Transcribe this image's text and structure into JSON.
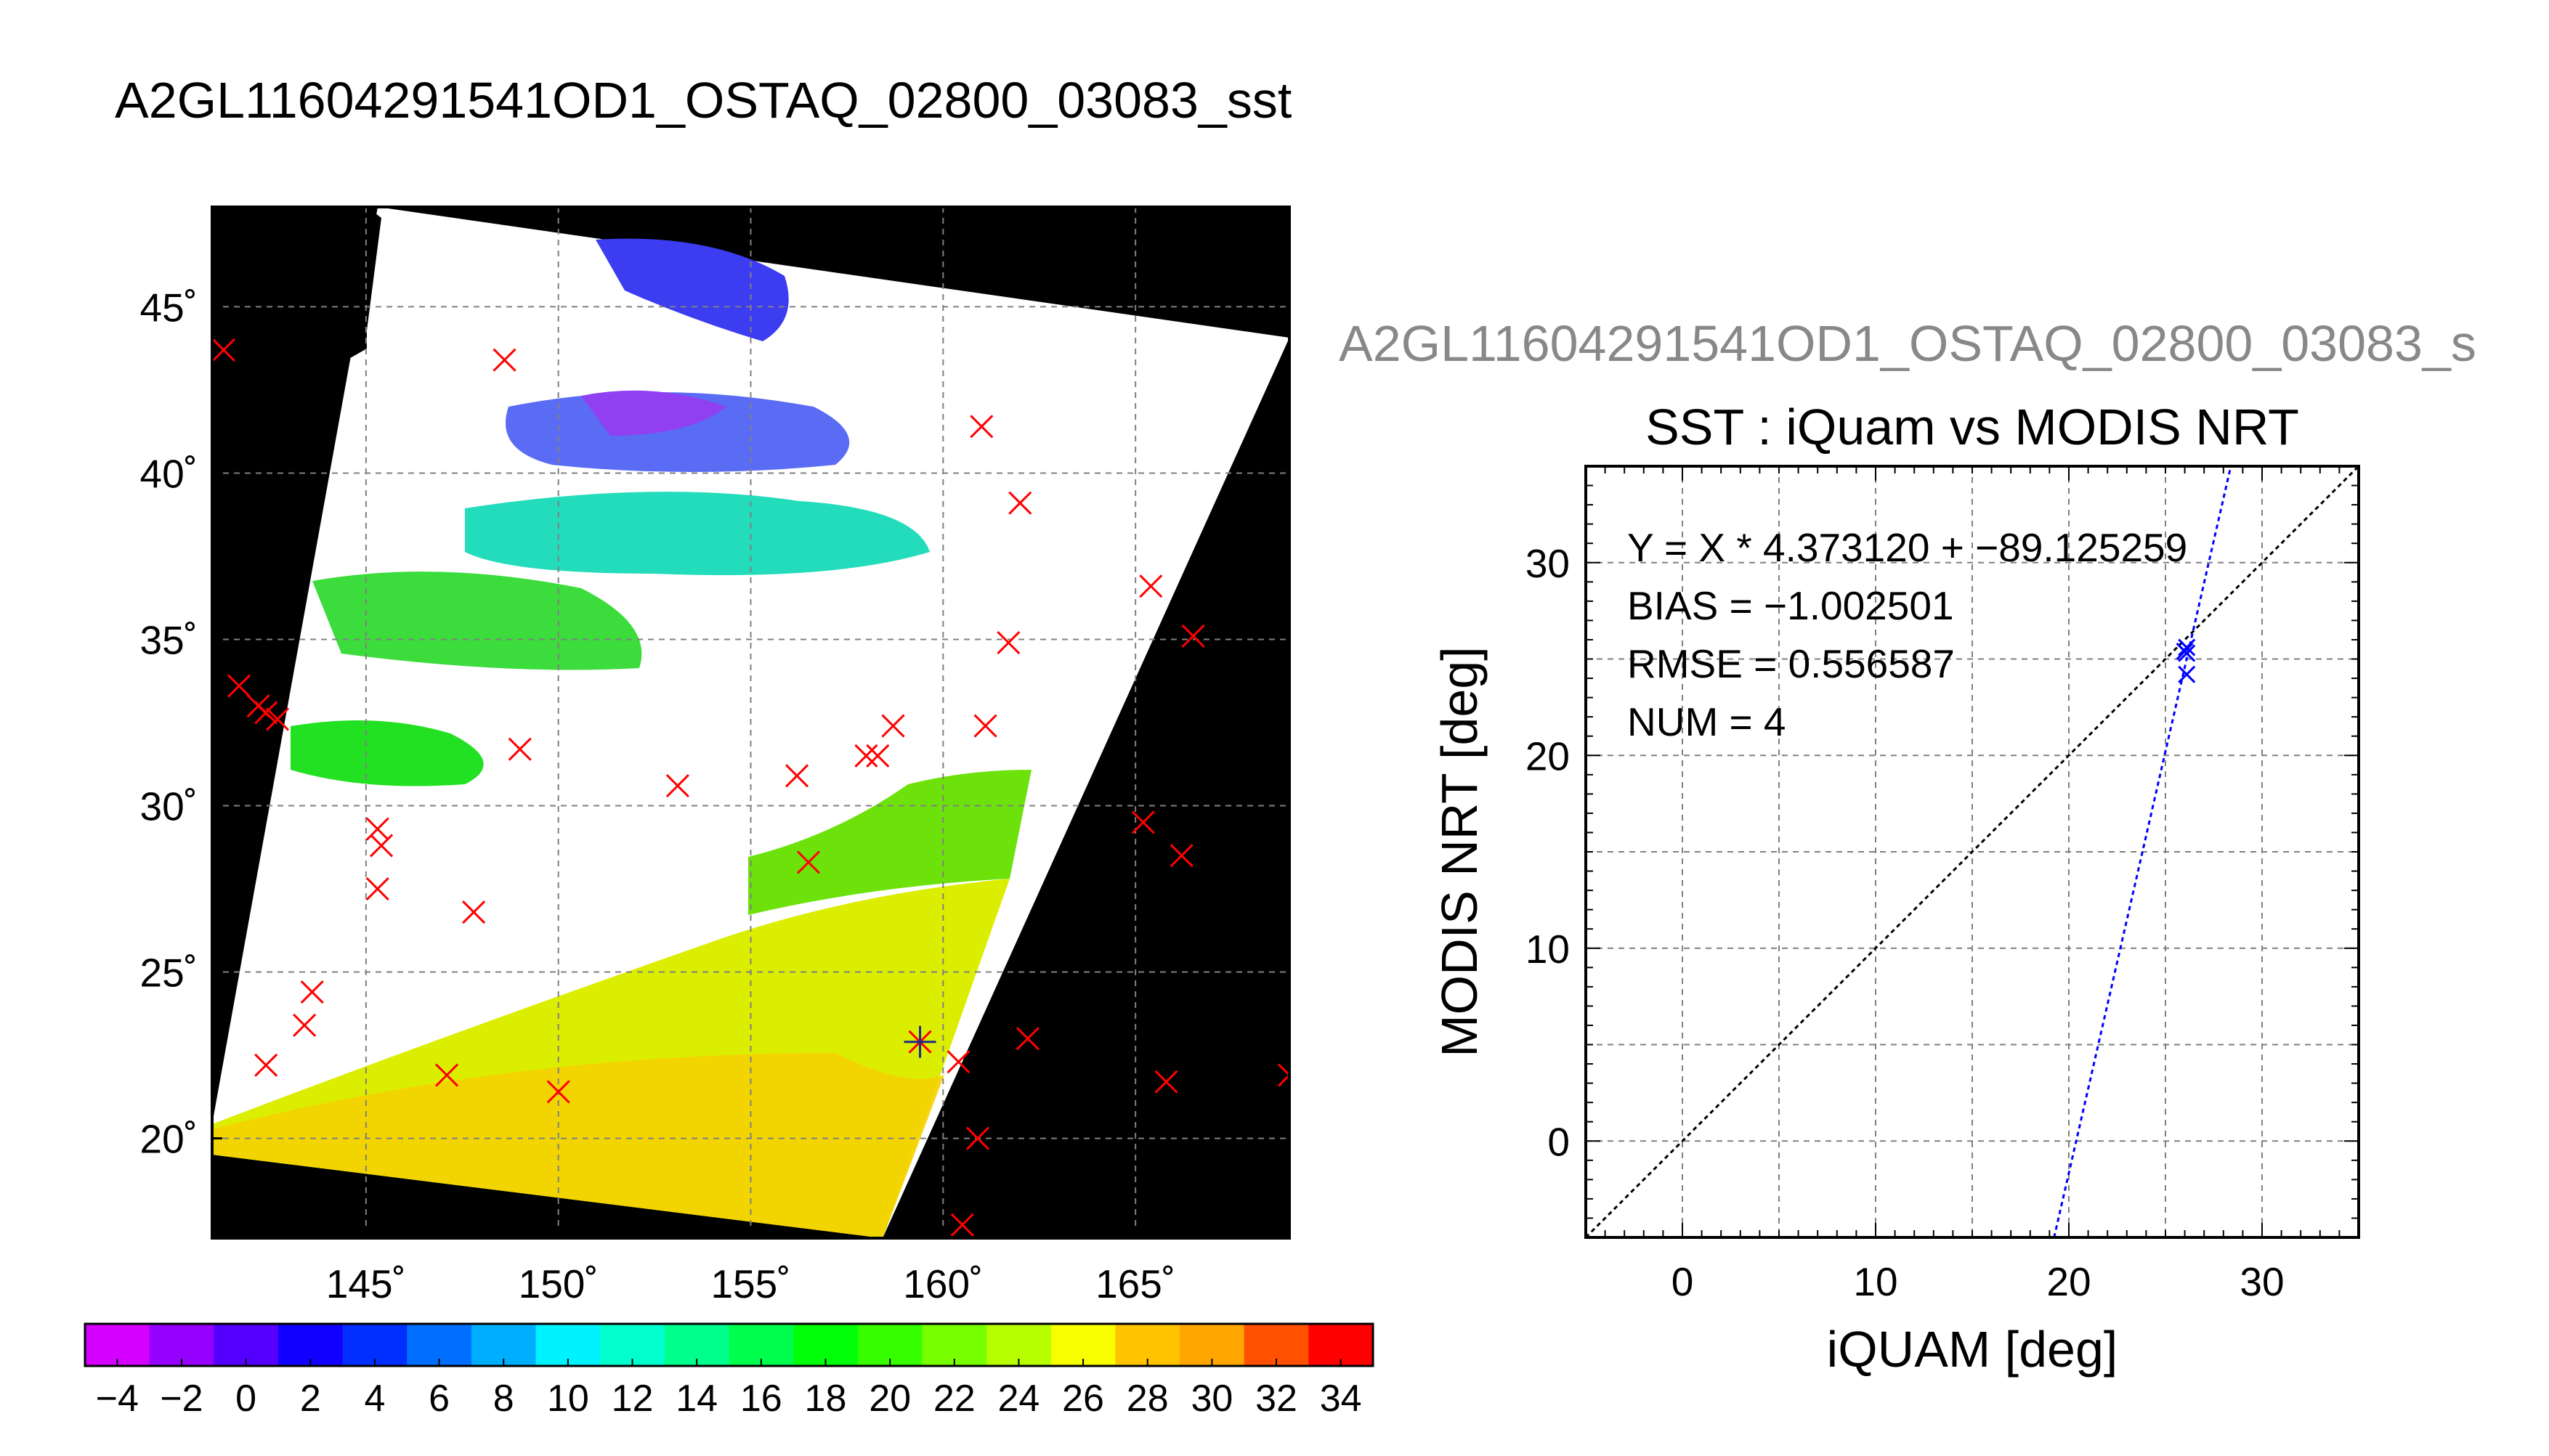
{
  "page_title": "A2GL11604291541OD1_OSTAQ_02800_03083_sst",
  "right_header": "A2GL11604291541OD1_OSTAQ_02800_03083_s",
  "colors": {
    "map_background": "#000000",
    "swath_fill": "#ffffff",
    "match_marker": "#ff0000",
    "scatter_marker": "#0000ff",
    "fit_line": "#0000ff",
    "identity_line": "#000000",
    "header_gray": "#888888"
  },
  "chart_data": [
    {
      "type": "scatter",
      "subtype": "map",
      "title": "",
      "xlabel": "",
      "ylabel": "",
      "xlim": [
        141,
        169
      ],
      "ylim": [
        17,
        48
      ],
      "x_ticks": [
        145,
        150,
        155,
        160,
        165
      ],
      "x_tick_labels": [
        "145˚",
        "150˚",
        "155˚",
        "160˚",
        "165˚"
      ],
      "y_ticks": [
        20,
        25,
        30,
        35,
        40,
        45
      ],
      "y_tick_labels": [
        "20˚",
        "25˚",
        "30˚",
        "35˚",
        "40˚",
        "45˚"
      ],
      "grid": true,
      "series": [
        {
          "marker": "x",
          "lon": [
            141.3,
            148.6,
            161.0,
            162.0,
            165.4,
            166.5,
            141.7,
            142.2,
            142.4,
            142.7,
            149.0,
            153.1,
            156.2,
            158.0,
            158.3,
            158.7,
            161.1,
            161.7,
            165.2,
            166.2,
            145.3,
            145.4,
            145.3,
            156.5,
            147.8,
            143.6,
            143.4,
            142.4,
            147.1,
            150.0,
            159.4,
            160.4,
            162.2,
            165.8,
            169.0,
            160.9,
            160.5
          ],
          "lat": [
            43.7,
            43.4,
            41.4,
            39.1,
            36.6,
            35.1,
            33.6,
            33.0,
            32.8,
            32.6,
            31.7,
            30.6,
            30.9,
            31.5,
            31.5,
            32.4,
            32.4,
            34.9,
            29.5,
            28.5,
            29.3,
            28.8,
            27.5,
            28.3,
            26.8,
            24.4,
            23.4,
            22.2,
            21.9,
            21.4,
            22.9,
            22.3,
            23.0,
            21.7,
            21.9,
            20.0,
            17.4
          ]
        }
      ],
      "overlap_marker": {
        "lon": 159.4,
        "lat": 22.9
      },
      "colorbar": {
        "range": [
          -5,
          35
        ],
        "tick_values": [
          -4,
          -2,
          0,
          2,
          4,
          6,
          8,
          10,
          12,
          14,
          16,
          18,
          20,
          22,
          24,
          26,
          28,
          30,
          32,
          34
        ],
        "tick_labels": [
          "−4",
          "−2",
          "0",
          "2",
          "4",
          "6",
          "8",
          "10",
          "12",
          "14",
          "16",
          "18",
          "20",
          "22",
          "24",
          "26",
          "28",
          "30",
          "32",
          "34"
        ]
      }
    },
    {
      "type": "scatter",
      "title": "SST : iQuam vs MODIS NRT",
      "xlabel": "iQUAM [deg]",
      "ylabel": "MODIS NRT [deg]",
      "xlim": [
        -5,
        35
      ],
      "ylim": [
        -5,
        35
      ],
      "x_ticks": [
        0,
        10,
        20,
        30
      ],
      "y_ticks": [
        0,
        10,
        20,
        30
      ],
      "grid": true,
      "points": [
        {
          "x": 26.1,
          "y": 25.6
        },
        {
          "x": 26.1,
          "y": 25.3
        },
        {
          "x": 26.0,
          "y": 25.4
        },
        {
          "x": 26.1,
          "y": 24.2
        }
      ],
      "fit": {
        "slope": 4.37312,
        "intercept": -89.125259
      },
      "identity_line": true,
      "annotations": [
        "Y = X * 4.373120 + −89.125259",
        "BIAS = −1.002501",
        "RMSE = 0.556587",
        "NUM = 4"
      ]
    }
  ]
}
